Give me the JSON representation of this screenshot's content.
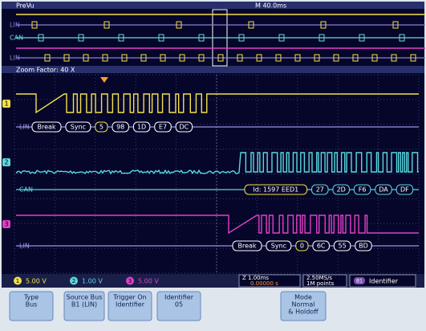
{
  "header": {
    "title": "PreVu",
    "timebase": "M 40.0ms"
  },
  "overview": {
    "buses": [
      "LIN",
      "CAN",
      "LIN"
    ]
  },
  "zoom": {
    "label": "Zoom Factor: 40 X"
  },
  "buses": [
    {
      "name": "LIN",
      "packets": [
        "Break",
        "Sync",
        "5",
        "98",
        "1D",
        "E7",
        "DC"
      ]
    },
    {
      "name": "CAN",
      "packets": [
        "Id: 1597 EED1",
        "27",
        "2D",
        "F6",
        "DA",
        "DF"
      ]
    },
    {
      "name": "LIN",
      "packets": [
        "Break",
        "Sync",
        "0",
        "6C",
        "55",
        "BD"
      ]
    }
  ],
  "channels": [
    {
      "number": "1",
      "scale": "5.00 V"
    },
    {
      "number": "2",
      "scale": "1.00 V"
    },
    {
      "number": "3",
      "scale": "5.00 V"
    }
  ],
  "status": {
    "zoom": "Z 1.00ms",
    "trigger": "0.00000 s",
    "rate": "2.50MS/s",
    "points": "1M points",
    "bus": "B1",
    "trigger_type": "Identifier"
  },
  "menu": [
    {
      "label": "Type",
      "value": [
        "Bus"
      ]
    },
    {
      "label": "Source Bus",
      "value": [
        "B1 (LIN)"
      ]
    },
    {
      "label": "Trigger On",
      "value": [
        "Identifier"
      ]
    },
    {
      "label": "Identifier",
      "value": [
        "05"
      ]
    },
    {
      "label": "Mode",
      "value": [
        "Normal",
        "& Holdoff"
      ]
    }
  ]
}
